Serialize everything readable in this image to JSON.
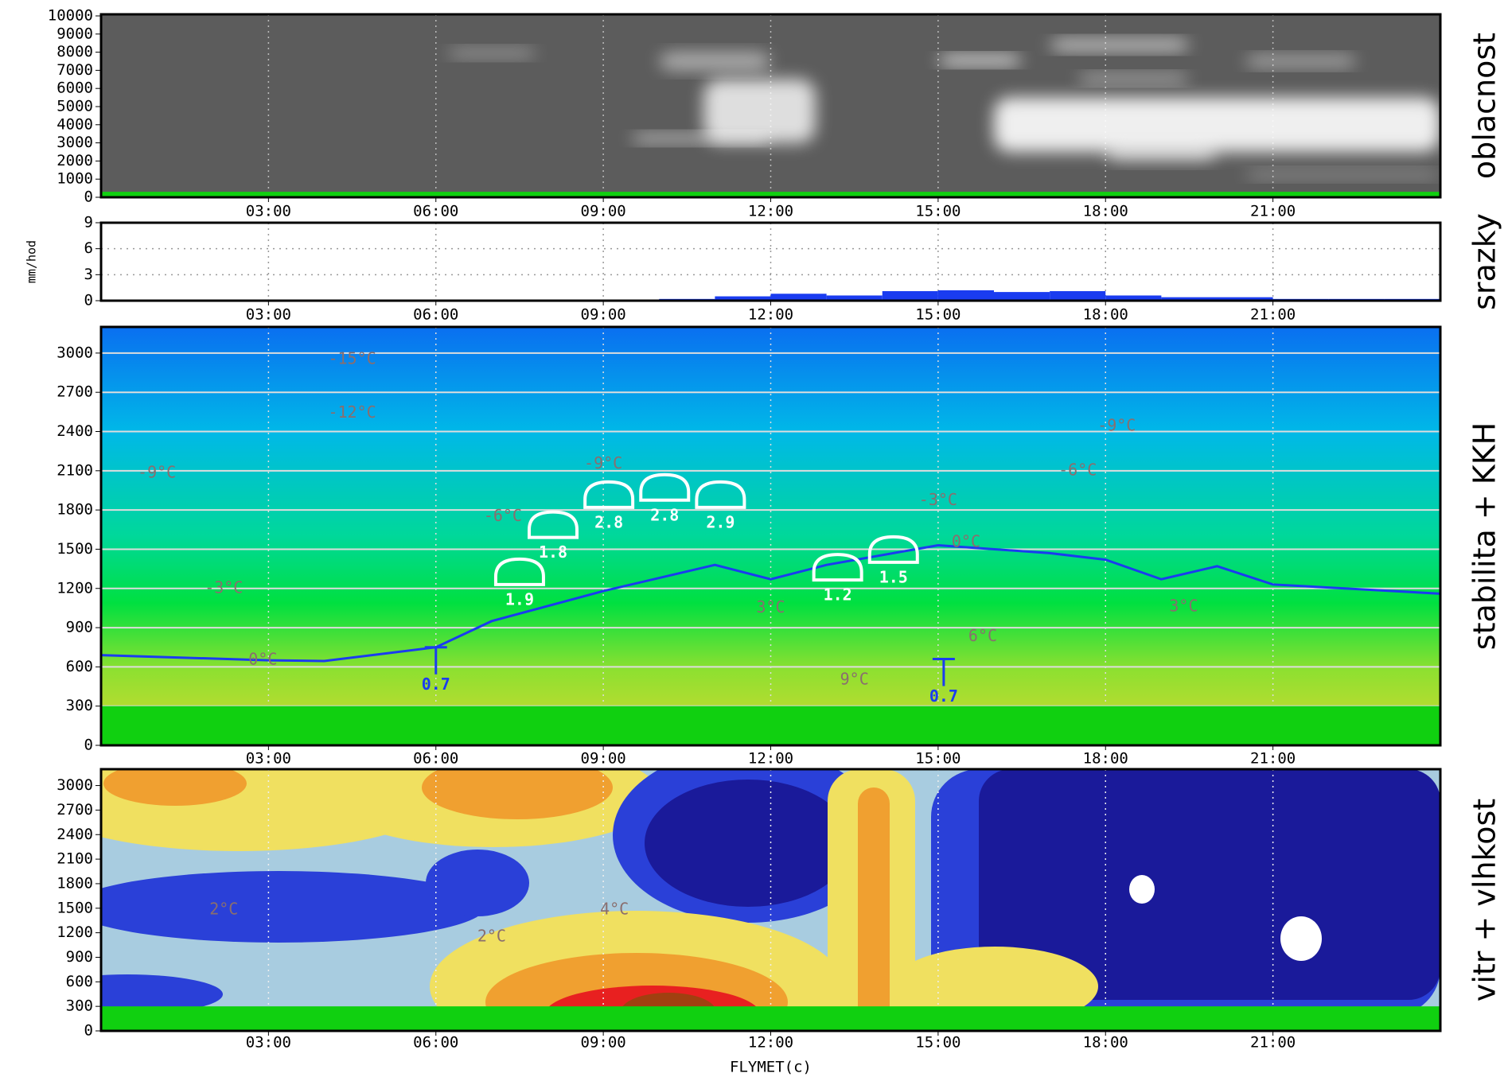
{
  "chart_data": [
    {
      "type": "clouds",
      "title": "oblacnost",
      "xlim": [
        0,
        24
      ],
      "xticks": [
        {
          "value": 3,
          "label": "03:00"
        },
        {
          "value": 6,
          "label": "06:00"
        },
        {
          "value": 9,
          "label": "09:00"
        },
        {
          "value": 12,
          "label": "12:00"
        },
        {
          "value": 15,
          "label": "15:00"
        },
        {
          "value": 18,
          "label": "18:00"
        },
        {
          "value": 21,
          "label": "21:00"
        }
      ],
      "ylim": [
        0,
        10000
      ],
      "yticks": [
        0,
        1000,
        2000,
        3000,
        4000,
        5000,
        6000,
        7000,
        8000,
        9000,
        10000
      ],
      "grid": "x",
      "ground": 300,
      "cells": [
        {
          "x": [
            6.2,
            7.8
          ],
          "y": [
            7700,
            8200
          ],
          "value": 0.4
        },
        {
          "x": [
            10,
            12
          ],
          "y": [
            7000,
            8000
          ],
          "value": 0.5
        },
        {
          "x": [
            10.8,
            12.8
          ],
          "y": [
            3000,
            6500
          ],
          "value": 0.8
        },
        {
          "x": [
            9.5,
            12
          ],
          "y": [
            3000,
            3500
          ],
          "value": 0.6
        },
        {
          "x": [
            15,
            16.5
          ],
          "y": [
            7300,
            7800
          ],
          "value": 0.9
        },
        {
          "x": [
            17,
            19.5
          ],
          "y": [
            8100,
            8700
          ],
          "value": 0.7
        },
        {
          "x": [
            17.5,
            19.5
          ],
          "y": [
            6300,
            6800
          ],
          "value": 0.5
        },
        {
          "x": [
            20.5,
            22.5
          ],
          "y": [
            7200,
            7800
          ],
          "value": 0.5
        },
        {
          "x": [
            16,
            24
          ],
          "y": [
            2500,
            5500
          ],
          "value": 0.9
        },
        {
          "x": [
            18,
            20
          ],
          "y": [
            2000,
            3000
          ],
          "value": 0.6
        },
        {
          "x": [
            20.5,
            24
          ],
          "y": [
            1000,
            1500
          ],
          "value": 0.3
        }
      ]
    },
    {
      "type": "histogram",
      "title": "srazky",
      "ylabel": "mm/hod",
      "color": "#1a3cf0",
      "xlim": [
        0,
        24
      ],
      "xticks": [
        {
          "value": 3,
          "label": "03:00"
        },
        {
          "value": 6,
          "label": "06:00"
        },
        {
          "value": 9,
          "label": "09:00"
        },
        {
          "value": 12,
          "label": "12:00"
        },
        {
          "value": 15,
          "label": "15:00"
        },
        {
          "value": 18,
          "label": "18:00"
        },
        {
          "value": 21,
          "label": "21:00"
        }
      ],
      "ylim": [
        0,
        9
      ],
      "yticks": [
        0,
        3,
        6,
        9
      ],
      "grid": "both",
      "bins": [
        0,
        1,
        2,
        3,
        4,
        5,
        6,
        7,
        8,
        9,
        10,
        11,
        12,
        13,
        14,
        15,
        16,
        17,
        18,
        19,
        20,
        21,
        22,
        23,
        24
      ],
      "values": [
        0,
        0,
        0,
        0,
        0,
        0,
        0,
        0,
        0,
        0,
        0.2,
        0.5,
        0.8,
        0.6,
        1.1,
        1.2,
        1.0,
        1.1,
        0.6,
        0.4,
        0.4,
        0.2,
        0.2,
        0.2
      ]
    },
    {
      "type": "stability",
      "title": "stabilita + KKH",
      "color": "#1a3cf0",
      "xlim": [
        0,
        24
      ],
      "xticks": [
        {
          "value": 3,
          "label": "03:00"
        },
        {
          "value": 6,
          "label": "06:00"
        },
        {
          "value": 9,
          "label": "09:00"
        },
        {
          "value": 12,
          "label": "12:00"
        },
        {
          "value": 15,
          "label": "15:00"
        },
        {
          "value": 18,
          "label": "18:00"
        },
        {
          "value": 21,
          "label": "21:00"
        }
      ],
      "ylim": [
        0,
        3200
      ],
      "yticks": [
        0,
        300,
        600,
        900,
        1200,
        1500,
        1800,
        2100,
        2400,
        2700,
        3000
      ],
      "grid": "both",
      "ground": 300,
      "x": [
        0,
        3,
        4,
        6,
        7,
        9,
        11,
        12,
        13,
        15,
        17,
        18,
        19,
        20,
        21,
        24
      ],
      "values": [
        690,
        650,
        645,
        750,
        950,
        1180,
        1380,
        1270,
        1380,
        1530,
        1470,
        1420,
        1270,
        1370,
        1230,
        1160
      ],
      "cumulus": {
        "x": [
          7.5,
          8.1,
          9.1,
          10.1,
          11.1,
          13.2,
          14.2
        ],
        "heights": [
          1230,
          1590,
          1820,
          1875,
          1820,
          1265,
          1400
        ],
        "values": [
          1.9,
          1.8,
          2.8,
          2.8,
          2.9,
          1.2,
          1.5
        ]
      },
      "thermals": {
        "x": [
          6.0,
          15.1
        ],
        "heights": [
          750,
          660
        ],
        "values": [
          0.7,
          0.7
        ]
      },
      "annotations": [
        {
          "text": "-15°C",
          "x": 4.5,
          "y": 2950
        },
        {
          "text": "-12°C",
          "x": 4.5,
          "y": 2540
        },
        {
          "text": "-9°C",
          "x": 1.0,
          "y": 2080
        },
        {
          "text": "-9°C",
          "x": 9.0,
          "y": 2150
        },
        {
          "text": "-9°C",
          "x": 18.2,
          "y": 2440
        },
        {
          "text": "-6°C",
          "x": 7.2,
          "y": 1750
        },
        {
          "text": "-6°C",
          "x": 17.5,
          "y": 2100
        },
        {
          "text": "-3°C",
          "x": 2.2,
          "y": 1200
        },
        {
          "text": "-3°C",
          "x": 15.0,
          "y": 1870
        },
        {
          "text": "0°C",
          "x": 2.9,
          "y": 650
        },
        {
          "text": "0°C",
          "x": 15.5,
          "y": 1550
        },
        {
          "text": "3°C",
          "x": 12.0,
          "y": 1050
        },
        {
          "text": "3°C",
          "x": 19.4,
          "y": 1060
        },
        {
          "text": "6°C",
          "x": 15.8,
          "y": 830
        },
        {
          "text": "9°C",
          "x": 13.5,
          "y": 500
        }
      ]
    },
    {
      "type": "wind-humidity",
      "title": "vitr + vlhkost",
      "xlabel": "FLYMET(c)",
      "xlim": [
        0,
        24
      ],
      "xticks": [
        {
          "value": 3,
          "label": "03:00"
        },
        {
          "value": 6,
          "label": "06:00"
        },
        {
          "value": 9,
          "label": "09:00"
        },
        {
          "value": 12,
          "label": "12:00"
        },
        {
          "value": 15,
          "label": "15:00"
        },
        {
          "value": 18,
          "label": "18:00"
        },
        {
          "value": 21,
          "label": "21:00"
        }
      ],
      "ylim": [
        0,
        3200
      ],
      "yticks": [
        0,
        300,
        600,
        900,
        1200,
        1500,
        1800,
        2100,
        2400,
        2700,
        3000
      ],
      "grid": "x",
      "ground": 300,
      "annotations": [
        {
          "text": "2°C",
          "x": 2.2,
          "y": 1480
        },
        {
          "text": "4°C",
          "x": 9.2,
          "y": 1480
        },
        {
          "text": "2°C",
          "x": 7.0,
          "y": 1150
        }
      ]
    }
  ]
}
